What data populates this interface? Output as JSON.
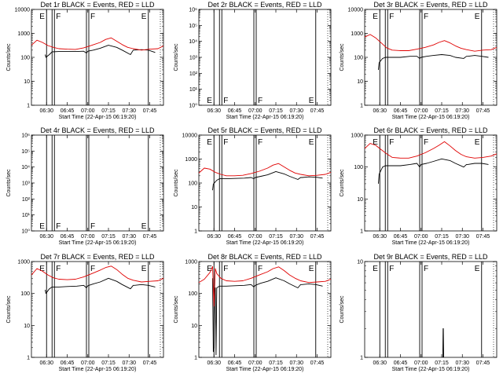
{
  "figure": {
    "xlabel": "Start Time (22-Apr-15 06:19:20)",
    "ylabel": "Counts/sec",
    "x_tick_labels": [
      "06:30",
      "06:45",
      "07:00",
      "07:15",
      "07:30",
      "07:45"
    ],
    "series_colors": {
      "events": "#000000",
      "lld": "#e00000"
    }
  },
  "chart_data": [
    {
      "type": "line",
      "title": "Det 1r BLACK = Events, RED = LLD",
      "xlabel": "Start Time (22-Apr-15 06:19:20)",
      "ylabel": "Counts/sec",
      "yscale": "log",
      "ylim": [
        1,
        10000
      ],
      "ytick_labels": [
        "1",
        "10",
        "100",
        "1000",
        "10000"
      ],
      "xlim_minutes": [
        0,
        96
      ],
      "markers": [
        {
          "t": 11,
          "label": "E"
        },
        {
          "t": 15,
          "label": "F"
        },
        {
          "t": 40,
          "label": "F"
        },
        {
          "t": 85,
          "label": "E"
        }
      ],
      "series": [
        {
          "name": "Events",
          "color": "#000000",
          "x": [
            10,
            10.5,
            13,
            15,
            20,
            26,
            33,
            38,
            40,
            41,
            45,
            50,
            56,
            62,
            66,
            72,
            74,
            75,
            80,
            85,
            90
          ],
          "y": [
            130,
            100,
            130,
            170,
            175,
            175,
            175,
            180,
            150,
            180,
            200,
            240,
            320,
            260,
            200,
            130,
            200,
            200,
            210,
            200,
            160
          ]
        },
        {
          "name": "LLD",
          "color": "#e00000",
          "x": [
            0,
            4,
            8,
            12,
            16,
            20,
            26,
            32,
            38,
            44,
            50,
            54,
            58,
            62,
            66,
            70,
            74,
            80,
            86,
            92,
            96
          ],
          "y": [
            320,
            520,
            420,
            310,
            260,
            230,
            220,
            215,
            250,
            320,
            420,
            560,
            650,
            470,
            340,
            260,
            230,
            200,
            220,
            230,
            300
          ]
        }
      ]
    },
    {
      "type": "line",
      "title": "Det 2r BLACK = Events, RED = LLD",
      "xlabel": "Start Time (22-Apr-15 06:19:20)",
      "ylabel": "Counts/sec",
      "yscale": "log",
      "ylim": [
        1,
        1000000
      ],
      "ytick_labels": [
        "10⁰",
        "10¹",
        "10²",
        "10³",
        "10⁴",
        "10⁵",
        "10⁶"
      ],
      "xlim_minutes": [
        0,
        96
      ],
      "markers": [
        {
          "t": 11,
          "label": "E"
        },
        {
          "t": 15,
          "label": "F"
        },
        {
          "t": 40,
          "label": "F"
        },
        {
          "t": 85,
          "label": "E"
        }
      ],
      "series": []
    },
    {
      "type": "line",
      "title": "Det 3r BLACK = Events, RED = LLD",
      "xlabel": "Start Time (22-Apr-15 06:19:20)",
      "ylabel": "Counts/sec",
      "yscale": "log",
      "ylim": [
        1,
        10000
      ],
      "ytick_labels": [
        "1",
        "10",
        "100",
        "1000",
        "10000"
      ],
      "xlim_minutes": [
        0,
        96
      ],
      "markers": [
        {
          "t": 11,
          "label": "E"
        },
        {
          "t": 15,
          "label": "F"
        },
        {
          "t": 40,
          "label": "F"
        },
        {
          "t": 85,
          "label": "E"
        }
      ],
      "series": [
        {
          "name": "Events",
          "color": "#000000",
          "x": [
            10,
            10.5,
            13,
            15,
            20,
            26,
            33,
            38,
            40,
            41,
            45,
            50,
            56,
            62,
            66,
            72,
            74,
            75,
            80,
            85,
            90
          ],
          "y": [
            30,
            60,
            90,
            100,
            100,
            100,
            110,
            110,
            90,
            100,
            110,
            120,
            130,
            120,
            100,
            90,
            110,
            110,
            120,
            110,
            100
          ]
        },
        {
          "name": "LLD",
          "color": "#e00000",
          "x": [
            0,
            4,
            8,
            12,
            16,
            20,
            26,
            32,
            38,
            44,
            50,
            54,
            58,
            62,
            66,
            70,
            74,
            80,
            86,
            92,
            96
          ],
          "y": [
            700,
            900,
            650,
            400,
            250,
            200,
            190,
            190,
            220,
            260,
            330,
            420,
            500,
            400,
            300,
            240,
            210,
            180,
            200,
            210,
            260
          ]
        }
      ]
    },
    {
      "type": "line",
      "title": "Det 4r BLACK = Events, RED = LLD",
      "xlabel": "Start Time (22-Apr-15 06:19:20)",
      "ylabel": "Counts/sec",
      "yscale": "log",
      "ylim": [
        1,
        1000000
      ],
      "ytick_labels": [
        "10⁰",
        "10¹",
        "10²",
        "10³",
        "10⁴",
        "10⁵",
        "10⁶"
      ],
      "xlim_minutes": [
        0,
        96
      ],
      "markers": [
        {
          "t": 11,
          "label": "E"
        },
        {
          "t": 15,
          "label": "F"
        },
        {
          "t": 40,
          "label": "F"
        },
        {
          "t": 85,
          "label": "E"
        }
      ],
      "series": []
    },
    {
      "type": "line",
      "title": "Det 5r BLACK = Events, RED = LLD",
      "xlabel": "Start Time (22-Apr-15 06:19:20)",
      "ylabel": "Counts/sec",
      "yscale": "log",
      "ylim": [
        1,
        10000
      ],
      "ytick_labels": [
        "1",
        "10",
        "100",
        "1000",
        "10000"
      ],
      "xlim_minutes": [
        0,
        96
      ],
      "markers": [
        {
          "t": 11,
          "label": "E"
        },
        {
          "t": 15,
          "label": "F"
        },
        {
          "t": 40,
          "label": "F"
        },
        {
          "t": 85,
          "label": "E"
        }
      ],
      "series": [
        {
          "name": "Events",
          "color": "#000000",
          "x": [
            10,
            10.5,
            13,
            15,
            20,
            26,
            33,
            38,
            40,
            41,
            45,
            50,
            56,
            62,
            66,
            72,
            74,
            75,
            80,
            85,
            90
          ],
          "y": [
            50,
            90,
            130,
            150,
            150,
            155,
            160,
            170,
            150,
            170,
            190,
            220,
            300,
            240,
            190,
            140,
            170,
            170,
            180,
            175,
            160
          ]
        },
        {
          "name": "LLD",
          "color": "#e00000",
          "x": [
            0,
            4,
            8,
            12,
            16,
            20,
            26,
            32,
            38,
            44,
            50,
            54,
            58,
            62,
            66,
            70,
            74,
            80,
            86,
            92,
            96
          ],
          "y": [
            260,
            420,
            380,
            280,
            230,
            200,
            200,
            210,
            250,
            310,
            420,
            560,
            650,
            470,
            340,
            260,
            230,
            200,
            210,
            230,
            280
          ]
        }
      ]
    },
    {
      "type": "line",
      "title": "Det 6r BLACK = Events, RED = LLD",
      "xlabel": "Start Time (22-Apr-15 06:19:20)",
      "ylabel": "Counts/sec",
      "yscale": "log",
      "ylim": [
        1,
        1000
      ],
      "ytick_labels": [
        "1",
        "10",
        "100",
        "1000"
      ],
      "xlim_minutes": [
        0,
        96
      ],
      "markers": [
        {
          "t": 11,
          "label": "E"
        },
        {
          "t": 15,
          "label": "F"
        },
        {
          "t": 40,
          "label": "F"
        },
        {
          "t": 85,
          "label": "E"
        }
      ],
      "series": [
        {
          "name": "Events",
          "color": "#000000",
          "x": [
            10,
            10.5,
            13,
            15,
            20,
            26,
            33,
            38,
            40,
            41,
            45,
            50,
            56,
            62,
            66,
            72,
            74,
            75,
            80,
            85,
            90
          ],
          "y": [
            30,
            60,
            100,
            110,
            110,
            110,
            120,
            130,
            100,
            120,
            130,
            150,
            180,
            160,
            130,
            100,
            120,
            120,
            130,
            130,
            120
          ]
        },
        {
          "name": "LLD",
          "color": "#e00000",
          "x": [
            0,
            4,
            8,
            12,
            16,
            20,
            26,
            32,
            38,
            44,
            50,
            54,
            58,
            62,
            66,
            70,
            74,
            80,
            86,
            92,
            96
          ],
          "y": [
            380,
            550,
            480,
            350,
            260,
            200,
            190,
            190,
            220,
            280,
            380,
            480,
            620,
            460,
            330,
            250,
            210,
            190,
            200,
            220,
            260
          ]
        }
      ]
    },
    {
      "type": "line",
      "title": "Det 7r BLACK = Events, RED = LLD",
      "xlabel": "Start Time (22-Apr-15 06:19:20)",
      "ylabel": "Counts/sec",
      "yscale": "log",
      "ylim": [
        1,
        1000
      ],
      "ytick_labels": [
        "1",
        "10",
        "100",
        "1000"
      ],
      "xlim_minutes": [
        0,
        96
      ],
      "markers": [
        {
          "t": 11,
          "label": "E"
        },
        {
          "t": 15,
          "label": "F"
        },
        {
          "t": 40,
          "label": "F"
        },
        {
          "t": 85,
          "label": "E"
        }
      ],
      "series": [
        {
          "name": "Events",
          "color": "#000000",
          "x": [
            10,
            10.5,
            13,
            15,
            20,
            26,
            33,
            38,
            40,
            41,
            45,
            50,
            56,
            62,
            66,
            72,
            74,
            75,
            80,
            85,
            90
          ],
          "y": [
            130,
            100,
            140,
            160,
            160,
            165,
            170,
            180,
            150,
            175,
            200,
            230,
            300,
            240,
            190,
            140,
            180,
            180,
            190,
            180,
            160
          ]
        },
        {
          "name": "LLD",
          "color": "#e00000",
          "x": [
            0,
            4,
            8,
            12,
            16,
            20,
            26,
            32,
            38,
            44,
            50,
            54,
            58,
            62,
            66,
            70,
            74,
            80,
            86,
            92,
            96
          ],
          "y": [
            380,
            600,
            500,
            380,
            310,
            280,
            270,
            280,
            330,
            420,
            540,
            650,
            720,
            560,
            400,
            300,
            260,
            230,
            240,
            250,
            300
          ]
        }
      ]
    },
    {
      "type": "line",
      "title": "Det 8r BLACK = Events, RED = LLD",
      "xlabel": "Start Time (22-Apr-15 06:19:20)",
      "ylabel": "Counts/sec",
      "yscale": "log",
      "ylim": [
        1,
        1000
      ],
      "ytick_labels": [
        "1",
        "10",
        "100",
        "1000"
      ],
      "xlim_minutes": [
        0,
        96
      ],
      "markers": [
        {
          "t": 11,
          "label": "E"
        },
        {
          "t": 15,
          "label": "F"
        },
        {
          "t": 40,
          "label": "F"
        },
        {
          "t": 85,
          "label": "E"
        }
      ],
      "series": [
        {
          "name": "Events",
          "color": "#000000",
          "x": [
            10,
            10.5,
            11,
            11.5,
            12,
            12.5,
            13,
            15,
            20,
            26,
            33,
            38,
            40,
            41,
            45,
            50,
            56,
            62,
            66,
            72,
            74,
            75,
            80,
            85,
            90
          ],
          "y": [
            300,
            1.5,
            2.0,
            120,
            150,
            1.2,
            150,
            170,
            170,
            175,
            180,
            190,
            160,
            180,
            210,
            240,
            310,
            250,
            200,
            150,
            190,
            190,
            200,
            190,
            170
          ]
        },
        {
          "name": "LLD",
          "color": "#e00000",
          "x": [
            0,
            4,
            8,
            10,
            11,
            12,
            13,
            16,
            20,
            26,
            32,
            38,
            44,
            50,
            54,
            58,
            62,
            66,
            70,
            74,
            80,
            86,
            92,
            96
          ],
          "y": [
            220,
            280,
            450,
            700,
            40,
            600,
            420,
            300,
            250,
            240,
            250,
            300,
            380,
            480,
            600,
            680,
            520,
            380,
            300,
            250,
            220,
            230,
            240,
            280
          ]
        }
      ]
    },
    {
      "type": "line",
      "title": "Det 9r BLACK = Events, RED = LLD",
      "xlabel": "Start Time (22-Apr-15 06:19:20)",
      "ylabel": "Counts/sec",
      "yscale": "log",
      "ylim": [
        1,
        10
      ],
      "ytick_labels": [
        "1",
        "10"
      ],
      "xlim_minutes": [
        0,
        96
      ],
      "markers": [
        {
          "t": 11,
          "label": "E"
        },
        {
          "t": 15,
          "label": "F"
        },
        {
          "t": 40,
          "label": "F"
        },
        {
          "t": 85,
          "label": "E"
        }
      ],
      "series": [
        {
          "name": "Events",
          "color": "#000000",
          "x": [
            56.8,
            57,
            57.2,
            57.4
          ],
          "y": [
            1.0,
            2.0,
            2.0,
            1.0
          ]
        }
      ]
    }
  ]
}
